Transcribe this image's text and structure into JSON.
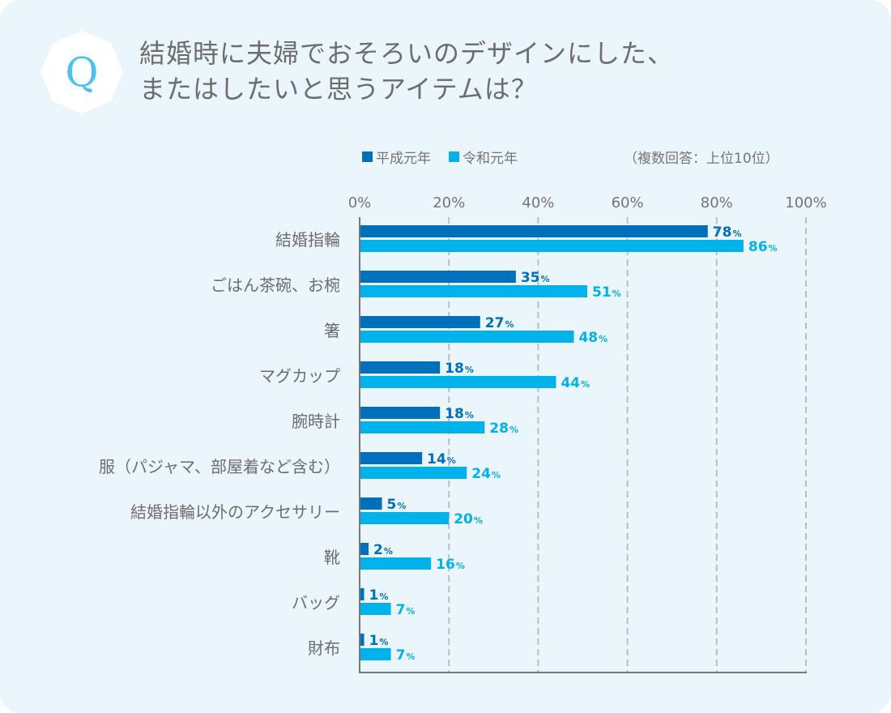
{
  "question_badge": "Q",
  "title_lines": [
    "結婚時に夫婦でおそろいのデザインにした、",
    "またはしたいと思うアイテムは？"
  ],
  "legend": [
    {
      "label": "平成元年",
      "color": "#0070bd"
    },
    {
      "label": "令和元年",
      "color": "#00b2ea"
    }
  ],
  "note": "（複数回答：上位10位）",
  "chart_data": {
    "type": "bar",
    "orientation": "horizontal",
    "title": "結婚時に夫婦でおそろいのデザインにした、またはしたいと思うアイテムは？",
    "xlabel": "",
    "ylabel": "",
    "xlim": [
      0,
      100
    ],
    "x_ticks": [
      "0%",
      "20%",
      "40%",
      "60%",
      "80%",
      "100%"
    ],
    "x_tick_values": [
      0,
      20,
      40,
      60,
      80,
      100
    ],
    "grid": "vertical dashed",
    "legend_position": "top",
    "unit": "%",
    "categories": [
      "結婚指輪",
      "ごはん茶碗、お椀",
      "箸",
      "マグカップ",
      "腕時計",
      "服（パジャマ、部屋着など含む）",
      "結婚指輪以外のアクセサリー",
      "靴",
      "バッグ",
      "財布"
    ],
    "series": [
      {
        "name": "平成元年",
        "color": "#0070bd",
        "values": [
          78,
          35,
          27,
          18,
          18,
          14,
          5,
          2,
          1,
          1
        ]
      },
      {
        "name": "令和元年",
        "color": "#00b2ea",
        "values": [
          86,
          51,
          48,
          44,
          28,
          24,
          20,
          16,
          7,
          7
        ]
      }
    ]
  }
}
